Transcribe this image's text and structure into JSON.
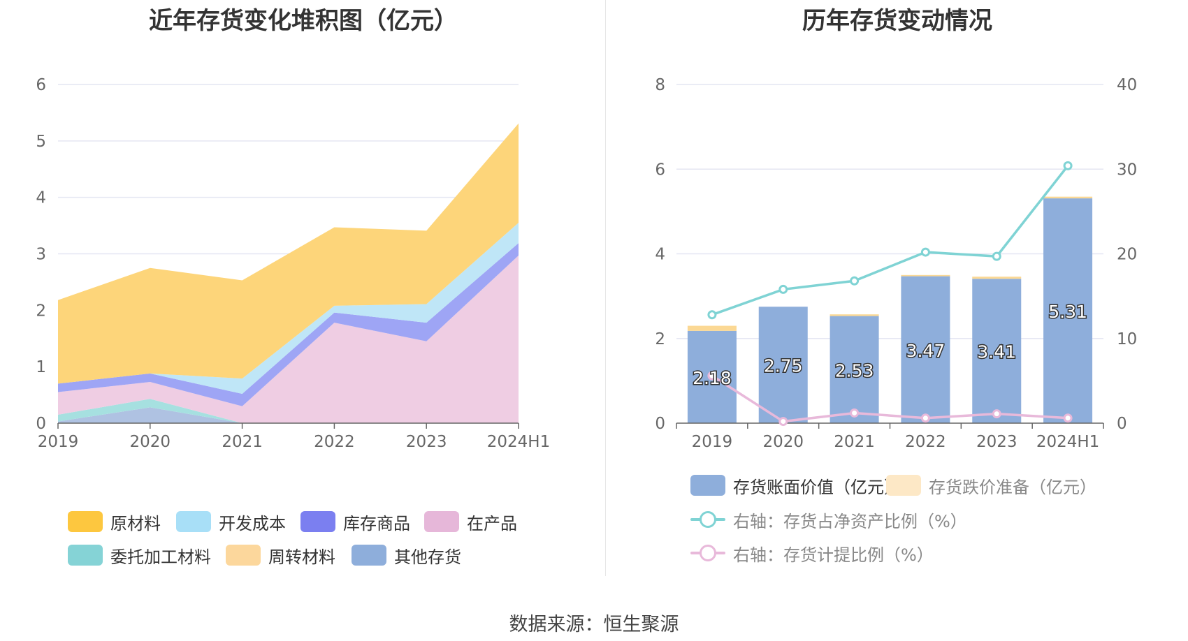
{
  "source": "数据来源：恒生聚源",
  "colors": {
    "原材料": "#fdd57a",
    "开发成本": "#bfe6f7",
    "库存商品": "#9ea5f5",
    "在产品": "#efcde3",
    "委托加工材料": "#a6e0e0",
    "周转材料": "#fde0b0",
    "其他存货": "#afc2e2",
    "bar_value": "#8eaedb",
    "bar_reserve": "#fbd894",
    "line_ratio": "#7fd3d4",
    "line_provision": "#e8b9da",
    "grid": "#e4e6f2"
  },
  "chart_data": [
    {
      "type": "area",
      "title": "近年存货变化堆积图（亿元）",
      "categories": [
        "2019",
        "2020",
        "2021",
        "2022",
        "2023",
        "2024H1"
      ],
      "ylim": [
        0,
        6
      ],
      "yticks": [
        "0",
        "1",
        "2",
        "3",
        "4",
        "5",
        "6"
      ],
      "grid": true,
      "legend_position": "bottom",
      "series": [
        {
          "name": "其他存货",
          "legend_color": "#8eaedb",
          "values": [
            0.03,
            0.28,
            0.0,
            0.0,
            0.0,
            0.0
          ]
        },
        {
          "name": "委托加工材料",
          "legend_color": "#85d3d6",
          "values": [
            0.12,
            0.15,
            0.0,
            0.0,
            0.0,
            0.0
          ]
        },
        {
          "name": "周转材料",
          "legend_color": "#fcd79c",
          "values": [
            0.0,
            0.0,
            0.0,
            0.0,
            0.0,
            0.0
          ]
        },
        {
          "name": "在产品",
          "legend_color": "#e6b7d9",
          "values": [
            0.4,
            0.3,
            0.3,
            1.78,
            1.45,
            2.97
          ]
        },
        {
          "name": "库存商品",
          "legend_color": "#7b7ff0",
          "values": [
            0.15,
            0.15,
            0.22,
            0.18,
            0.33,
            0.22
          ]
        },
        {
          "name": "开发成本",
          "legend_color": "#a8dff7",
          "values": [
            0.0,
            0.0,
            0.27,
            0.12,
            0.33,
            0.36
          ]
        },
        {
          "name": "原材料",
          "legend_color": "#fdc73f",
          "values": [
            1.48,
            1.87,
            1.74,
            1.39,
            1.3,
            1.76
          ]
        }
      ],
      "legend_order": [
        "原材料",
        "开发成本",
        "库存商品",
        "在产品",
        "委托加工材料",
        "周转材料",
        "其他存货"
      ]
    },
    {
      "type": "bar",
      "title": "历年存货变动情况",
      "categories": [
        "2019",
        "2020",
        "2021",
        "2022",
        "2023",
        "2024H1"
      ],
      "ylim_left": [
        0,
        8
      ],
      "yticks_left": [
        "0",
        "2",
        "4",
        "6",
        "8"
      ],
      "ylim_right": [
        0,
        40
      ],
      "yticks_right": [
        "0",
        "10",
        "20",
        "30",
        "40"
      ],
      "grid": true,
      "legend_position": "bottom",
      "series": [
        {
          "name": "存货账面价值（亿元）",
          "kind": "bar",
          "axis": "left",
          "values": [
            2.18,
            2.75,
            2.53,
            3.47,
            3.41,
            5.31
          ],
          "labels": [
            "2.18",
            "2.75",
            "2.53",
            "3.47",
            "3.41",
            "5.31"
          ]
        },
        {
          "name": "存货跌价准备（亿元）",
          "kind": "bar-stack",
          "axis": "left",
          "values": [
            0.12,
            0.0,
            0.04,
            0.03,
            0.05,
            0.04
          ]
        },
        {
          "name": "右轴：存货占净资产比例（%）",
          "kind": "line",
          "axis": "right",
          "values": [
            12.8,
            15.8,
            16.8,
            20.2,
            19.7,
            30.4
          ]
        },
        {
          "name": "右轴：存货计提比例（%）",
          "kind": "line",
          "axis": "right",
          "values": [
            5.6,
            0.2,
            1.2,
            0.6,
            1.1,
            0.6
          ]
        }
      ]
    }
  ]
}
